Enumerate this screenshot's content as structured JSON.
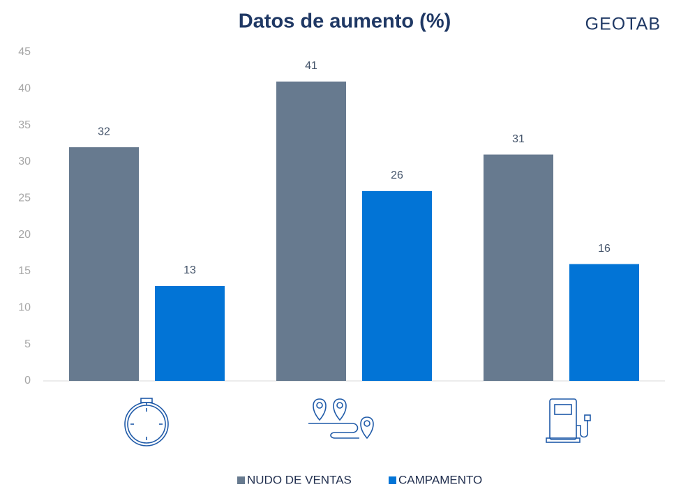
{
  "chart_data": {
    "type": "bar",
    "title": "Datos de aumento (%)",
    "logo": "GEOTAB",
    "categories": [
      null,
      null,
      null
    ],
    "series": [
      {
        "name": "NUDO DE VENTAS",
        "color": "#677a8f",
        "values": [
          32,
          41,
          31
        ]
      },
      {
        "name": "CAMPAMENTO",
        "color": "#0274d6",
        "values": [
          13,
          26,
          16
        ]
      }
    ],
    "ylim": [
      0,
      45
    ],
    "yticks": [
      0,
      5,
      10,
      15,
      20,
      25,
      30,
      35,
      40,
      45
    ],
    "grid": false,
    "legend": "bottom"
  }
}
